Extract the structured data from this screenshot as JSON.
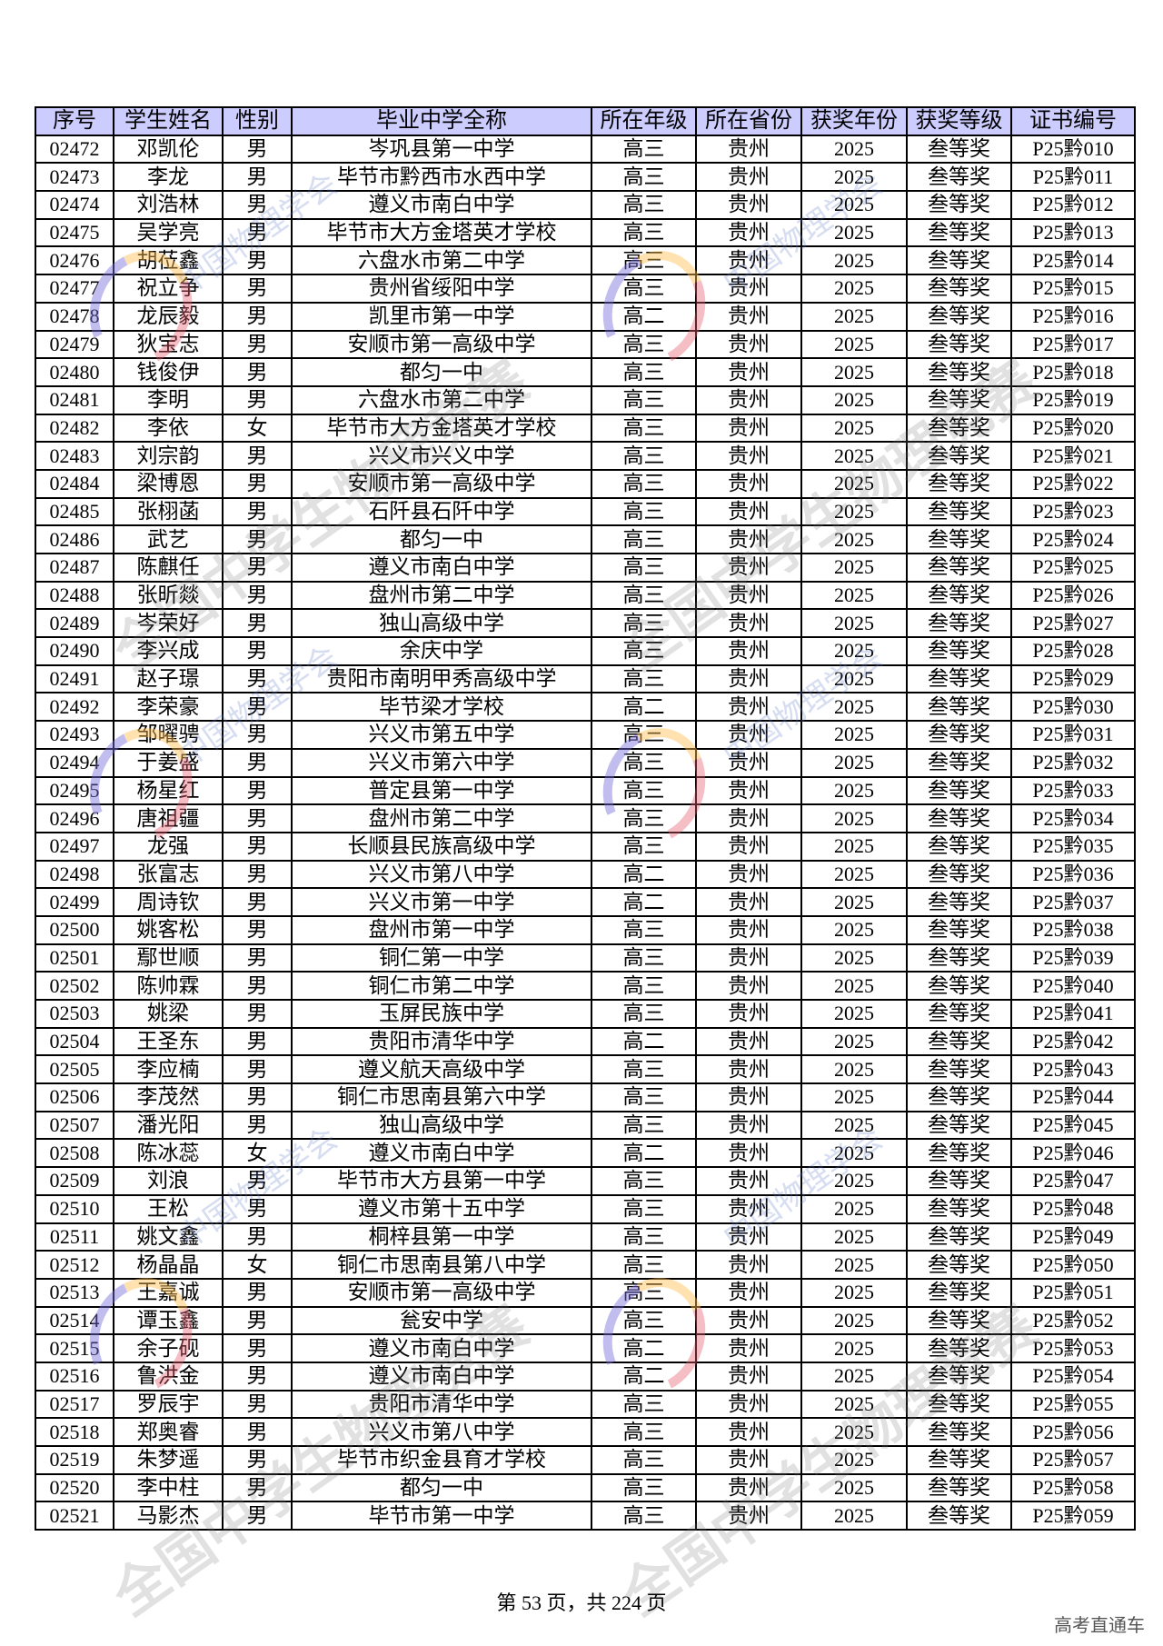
{
  "table": {
    "headers": [
      "序号",
      "学生姓名",
      "性别",
      "毕业中学全称",
      "所在年级",
      "所在省份",
      "获奖年份",
      "获奖等级",
      "证书编号"
    ],
    "rows": [
      [
        "02472",
        "邓凯伦",
        "男",
        "岑巩县第一中学",
        "高三",
        "贵州",
        "2025",
        "叁等奖",
        "P25黔010"
      ],
      [
        "02473",
        "李龙",
        "男",
        "毕节市黔西市水西中学",
        "高三",
        "贵州",
        "2025",
        "叁等奖",
        "P25黔011"
      ],
      [
        "02474",
        "刘浩林",
        "男",
        "遵义市南白中学",
        "高三",
        "贵州",
        "2025",
        "叁等奖",
        "P25黔012"
      ],
      [
        "02475",
        "吴学亮",
        "男",
        "毕节市大方金塔英才学校",
        "高三",
        "贵州",
        "2025",
        "叁等奖",
        "P25黔013"
      ],
      [
        "02476",
        "胡莅鑫",
        "男",
        "六盘水市第二中学",
        "高三",
        "贵州",
        "2025",
        "叁等奖",
        "P25黔014"
      ],
      [
        "02477",
        "祝立争",
        "男",
        "贵州省绥阳中学",
        "高三",
        "贵州",
        "2025",
        "叁等奖",
        "P25黔015"
      ],
      [
        "02478",
        "龙辰毅",
        "男",
        "凯里市第一中学",
        "高二",
        "贵州",
        "2025",
        "叁等奖",
        "P25黔016"
      ],
      [
        "02479",
        "狄宝志",
        "男",
        "安顺市第一高级中学",
        "高三",
        "贵州",
        "2025",
        "叁等奖",
        "P25黔017"
      ],
      [
        "02480",
        "钱俊伊",
        "男",
        "都匀一中",
        "高三",
        "贵州",
        "2025",
        "叁等奖",
        "P25黔018"
      ],
      [
        "02481",
        "李明",
        "男",
        "六盘水市第二中学",
        "高三",
        "贵州",
        "2025",
        "叁等奖",
        "P25黔019"
      ],
      [
        "02482",
        "李依",
        "女",
        "毕节市大方金塔英才学校",
        "高三",
        "贵州",
        "2025",
        "叁等奖",
        "P25黔020"
      ],
      [
        "02483",
        "刘宗韵",
        "男",
        "兴义市兴义中学",
        "高三",
        "贵州",
        "2025",
        "叁等奖",
        "P25黔021"
      ],
      [
        "02484",
        "梁博恩",
        "男",
        "安顺市第一高级中学",
        "高三",
        "贵州",
        "2025",
        "叁等奖",
        "P25黔022"
      ],
      [
        "02485",
        "张栩菡",
        "男",
        "石阡县石阡中学",
        "高三",
        "贵州",
        "2025",
        "叁等奖",
        "P25黔023"
      ],
      [
        "02486",
        "武艺",
        "男",
        "都匀一中",
        "高三",
        "贵州",
        "2025",
        "叁等奖",
        "P25黔024"
      ],
      [
        "02487",
        "陈麒任",
        "男",
        "遵义市南白中学",
        "高三",
        "贵州",
        "2025",
        "叁等奖",
        "P25黔025"
      ],
      [
        "02488",
        "张昕燚",
        "男",
        "盘州市第二中学",
        "高三",
        "贵州",
        "2025",
        "叁等奖",
        "P25黔026"
      ],
      [
        "02489",
        "岑荣好",
        "男",
        "独山高级中学",
        "高三",
        "贵州",
        "2025",
        "叁等奖",
        "P25黔027"
      ],
      [
        "02490",
        "李兴成",
        "男",
        "余庆中学",
        "高三",
        "贵州",
        "2025",
        "叁等奖",
        "P25黔028"
      ],
      [
        "02491",
        "赵子璟",
        "男",
        "贵阳市南明甲秀高级中学",
        "高三",
        "贵州",
        "2025",
        "叁等奖",
        "P25黔029"
      ],
      [
        "02492",
        "李荣豪",
        "男",
        "毕节梁才学校",
        "高二",
        "贵州",
        "2025",
        "叁等奖",
        "P25黔030"
      ],
      [
        "02493",
        "邹曜骋",
        "男",
        "兴义市第五中学",
        "高三",
        "贵州",
        "2025",
        "叁等奖",
        "P25黔031"
      ],
      [
        "02494",
        "于姜盛",
        "男",
        "兴义市第六中学",
        "高三",
        "贵州",
        "2025",
        "叁等奖",
        "P25黔032"
      ],
      [
        "02495",
        "杨星红",
        "男",
        "普定县第一中学",
        "高三",
        "贵州",
        "2025",
        "叁等奖",
        "P25黔033"
      ],
      [
        "02496",
        "唐祖疆",
        "男",
        "盘州市第二中学",
        "高三",
        "贵州",
        "2025",
        "叁等奖",
        "P25黔034"
      ],
      [
        "02497",
        "龙强",
        "男",
        "长顺县民族高级中学",
        "高三",
        "贵州",
        "2025",
        "叁等奖",
        "P25黔035"
      ],
      [
        "02498",
        "张富志",
        "男",
        "兴义市第八中学",
        "高二",
        "贵州",
        "2025",
        "叁等奖",
        "P25黔036"
      ],
      [
        "02499",
        "周诗钦",
        "男",
        "兴义市第一中学",
        "高二",
        "贵州",
        "2025",
        "叁等奖",
        "P25黔037"
      ],
      [
        "02500",
        "姚客松",
        "男",
        "盘州市第一中学",
        "高三",
        "贵州",
        "2025",
        "叁等奖",
        "P25黔038"
      ],
      [
        "02501",
        "鄢世顺",
        "男",
        "铜仁第一中学",
        "高三",
        "贵州",
        "2025",
        "叁等奖",
        "P25黔039"
      ],
      [
        "02502",
        "陈帅霖",
        "男",
        "铜仁市第二中学",
        "高三",
        "贵州",
        "2025",
        "叁等奖",
        "P25黔040"
      ],
      [
        "02503",
        "姚梁",
        "男",
        "玉屏民族中学",
        "高三",
        "贵州",
        "2025",
        "叁等奖",
        "P25黔041"
      ],
      [
        "02504",
        "王圣东",
        "男",
        "贵阳市清华中学",
        "高二",
        "贵州",
        "2025",
        "叁等奖",
        "P25黔042"
      ],
      [
        "02505",
        "李应楠",
        "男",
        "遵义航天高级中学",
        "高三",
        "贵州",
        "2025",
        "叁等奖",
        "P25黔043"
      ],
      [
        "02506",
        "李茂然",
        "男",
        "铜仁市思南县第六中学",
        "高三",
        "贵州",
        "2025",
        "叁等奖",
        "P25黔044"
      ],
      [
        "02507",
        "潘光阳",
        "男",
        "独山高级中学",
        "高三",
        "贵州",
        "2025",
        "叁等奖",
        "P25黔045"
      ],
      [
        "02508",
        "陈冰蕊",
        "女",
        "遵义市南白中学",
        "高二",
        "贵州",
        "2025",
        "叁等奖",
        "P25黔046"
      ],
      [
        "02509",
        "刘浪",
        "男",
        "毕节市大方县第一中学",
        "高三",
        "贵州",
        "2025",
        "叁等奖",
        "P25黔047"
      ],
      [
        "02510",
        "王松",
        "男",
        "遵义市第十五中学",
        "高三",
        "贵州",
        "2025",
        "叁等奖",
        "P25黔048"
      ],
      [
        "02511",
        "姚文鑫",
        "男",
        "桐梓县第一中学",
        "高三",
        "贵州",
        "2025",
        "叁等奖",
        "P25黔049"
      ],
      [
        "02512",
        "杨晶晶",
        "女",
        "铜仁市思南县第八中学",
        "高三",
        "贵州",
        "2025",
        "叁等奖",
        "P25黔050"
      ],
      [
        "02513",
        "王嘉诚",
        "男",
        "安顺市第一高级中学",
        "高三",
        "贵州",
        "2025",
        "叁等奖",
        "P25黔051"
      ],
      [
        "02514",
        "谭玉鑫",
        "男",
        "瓮安中学",
        "高三",
        "贵州",
        "2025",
        "叁等奖",
        "P25黔052"
      ],
      [
        "02515",
        "余子砚",
        "男",
        "遵义市南白中学",
        "高二",
        "贵州",
        "2025",
        "叁等奖",
        "P25黔053"
      ],
      [
        "02516",
        "鲁洪金",
        "男",
        "遵义市南白中学",
        "高二",
        "贵州",
        "2025",
        "叁等奖",
        "P25黔054"
      ],
      [
        "02517",
        "罗辰宇",
        "男",
        "贵阳市清华中学",
        "高三",
        "贵州",
        "2025",
        "叁等奖",
        "P25黔055"
      ],
      [
        "02518",
        "郑奥睿",
        "男",
        "兴义市第八中学",
        "高三",
        "贵州",
        "2025",
        "叁等奖",
        "P25黔056"
      ],
      [
        "02519",
        "朱梦遥",
        "男",
        "毕节市织金县育才学校",
        "高三",
        "贵州",
        "2025",
        "叁等奖",
        "P25黔057"
      ],
      [
        "02520",
        "李中柱",
        "男",
        "都匀一中",
        "高三",
        "贵州",
        "2025",
        "叁等奖",
        "P25黔058"
      ],
      [
        "02521",
        "马影杰",
        "男",
        "毕节市第一中学",
        "高三",
        "贵州",
        "2025",
        "叁等奖",
        "P25黔059"
      ]
    ]
  },
  "watermark": {
    "text_cn": "全国中学生物理竞赛",
    "text_org": "中国物理学会",
    "text_en": "Chinese Physical Society"
  },
  "footer": {
    "page_text": "第 53 页，共 224 页"
  },
  "brand": "高考直通车",
  "colors": {
    "header_bg": "#ccccff"
  }
}
